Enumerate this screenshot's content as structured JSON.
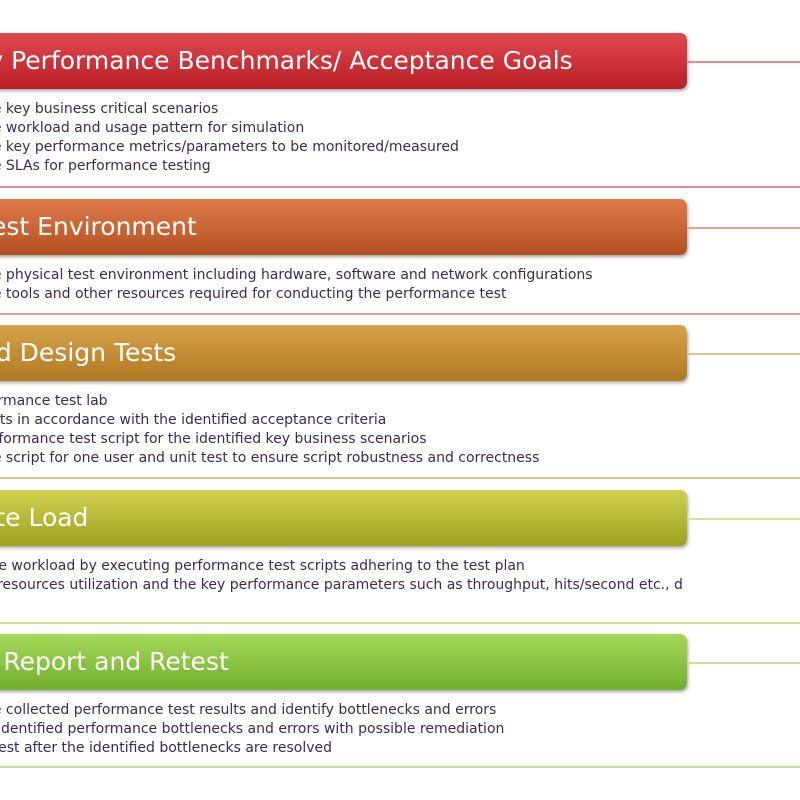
{
  "stages": [
    {
      "title": "fy Performance Benchmarks/ Acceptance Goals",
      "color_top": "#e0484f",
      "color_bottom": "#b91e25",
      "line_color": "#e58a8f",
      "items": [
        "he key business critical scenarios",
        "he workload and usage pattern for simulation",
        "he key performance metrics/parameters to be monitored/measured",
        "he SLAs for performance testing"
      ]
    },
    {
      "title": "Test Environment",
      "color_top": "#e07a4a",
      "color_bottom": "#b4501f",
      "line_color": "#e6a889",
      "items": [
        "he physical test environment including hardware, software and network configurations",
        "he tools and other resources required for conducting the performance test"
      ]
    },
    {
      "title": "nd Design Tests",
      "color_top": "#d6a24a",
      "color_bottom": "#b07a22",
      "line_color": "#e2c28c",
      "items": [
        "formance test lab",
        "ests in accordance with the identified acceptance criteria",
        "erformance test script for the identified key business scenarios",
        "he script for one user and unit test to ensure script robustness and correctness"
      ]
    },
    {
      "title": "ate Load",
      "color_top": "#cfd04e",
      "color_bottom": "#9ea221",
      "line_color": "#dcdc95",
      "items": [
        " the workload by executing performance test scripts adhering to the test plan",
        "e resources utilization  and the key performance parameters such as throughput,  hits/second etc., d"
      ]
    },
    {
      "title": "e Report and Retest",
      "color_top": "#a6d95a",
      "color_bottom": "#72ae2c",
      "line_color": "#c6e4a0",
      "items": [
        "he collected performance test results and identify bottlenecks and errors",
        "e identified performance bottlenecks and errors with possible remediation",
        "etest after the identified bottlenecks are resolved"
      ]
    }
  ]
}
